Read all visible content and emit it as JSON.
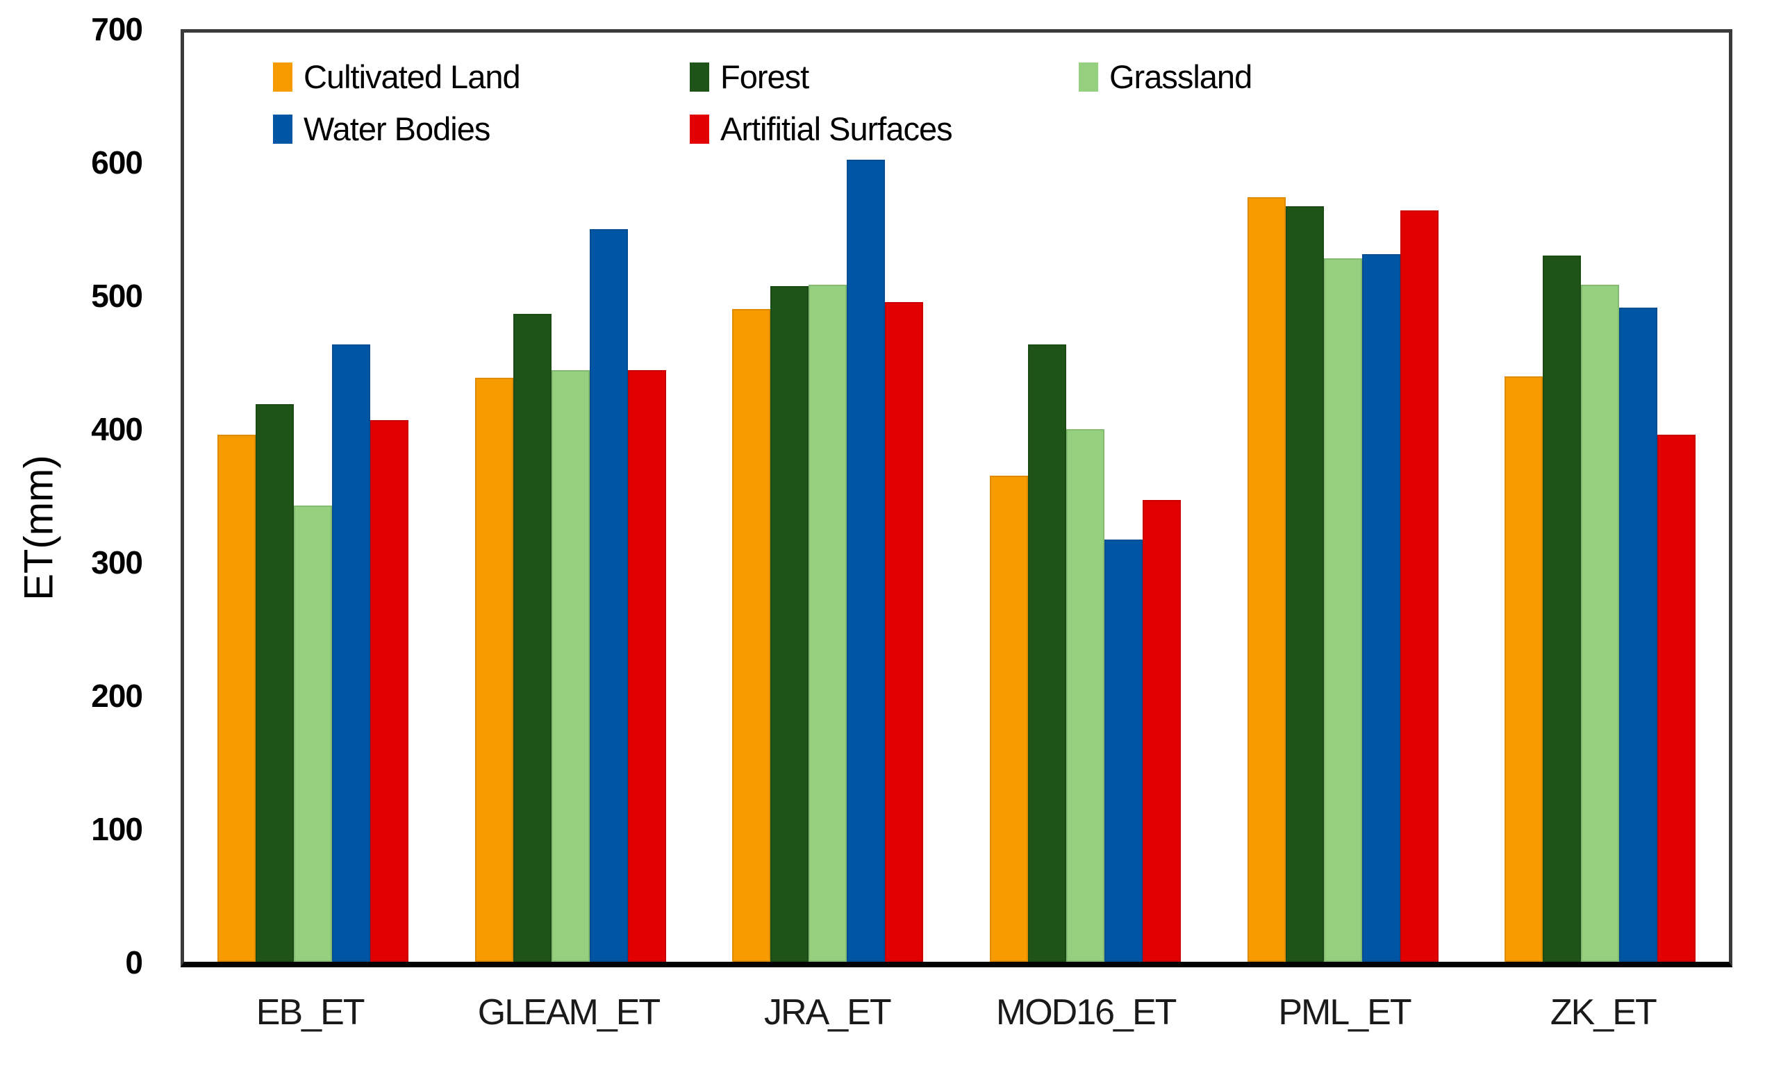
{
  "chart_data": {
    "type": "bar",
    "title": "",
    "xlabel": "",
    "ylabel": "ET(mm)",
    "ylim": [
      0,
      700
    ],
    "yticks": [
      0,
      100,
      200,
      300,
      400,
      500,
      600,
      700
    ],
    "grid": false,
    "legend_position": "inside-top-left",
    "categories": [
      "EB_ET",
      "GLEAM_ET",
      "JRA_ET",
      "MOD16_ET",
      "PML_ET",
      "ZK_ET"
    ],
    "series": [
      {
        "name": "Cultivated Land",
        "color": "#F79B00",
        "values": [
          397,
          440,
          492,
          366,
          576,
          441
        ]
      },
      {
        "name": "Forest",
        "color": "#1E5418",
        "values": [
          420,
          488,
          509,
          465,
          569,
          532
        ]
      },
      {
        "name": "Grassland",
        "color": "#94D07E",
        "values": [
          344,
          446,
          510,
          401,
          530,
          510
        ]
      },
      {
        "name": "Water Bodies",
        "color": "#0056A4",
        "values": [
          465,
          552,
          604,
          318,
          533,
          493
        ]
      },
      {
        "name": "Artifitial Surfaces",
        "color": "#E20000",
        "values": [
          408,
          446,
          497,
          348,
          566,
          397
        ]
      }
    ]
  }
}
